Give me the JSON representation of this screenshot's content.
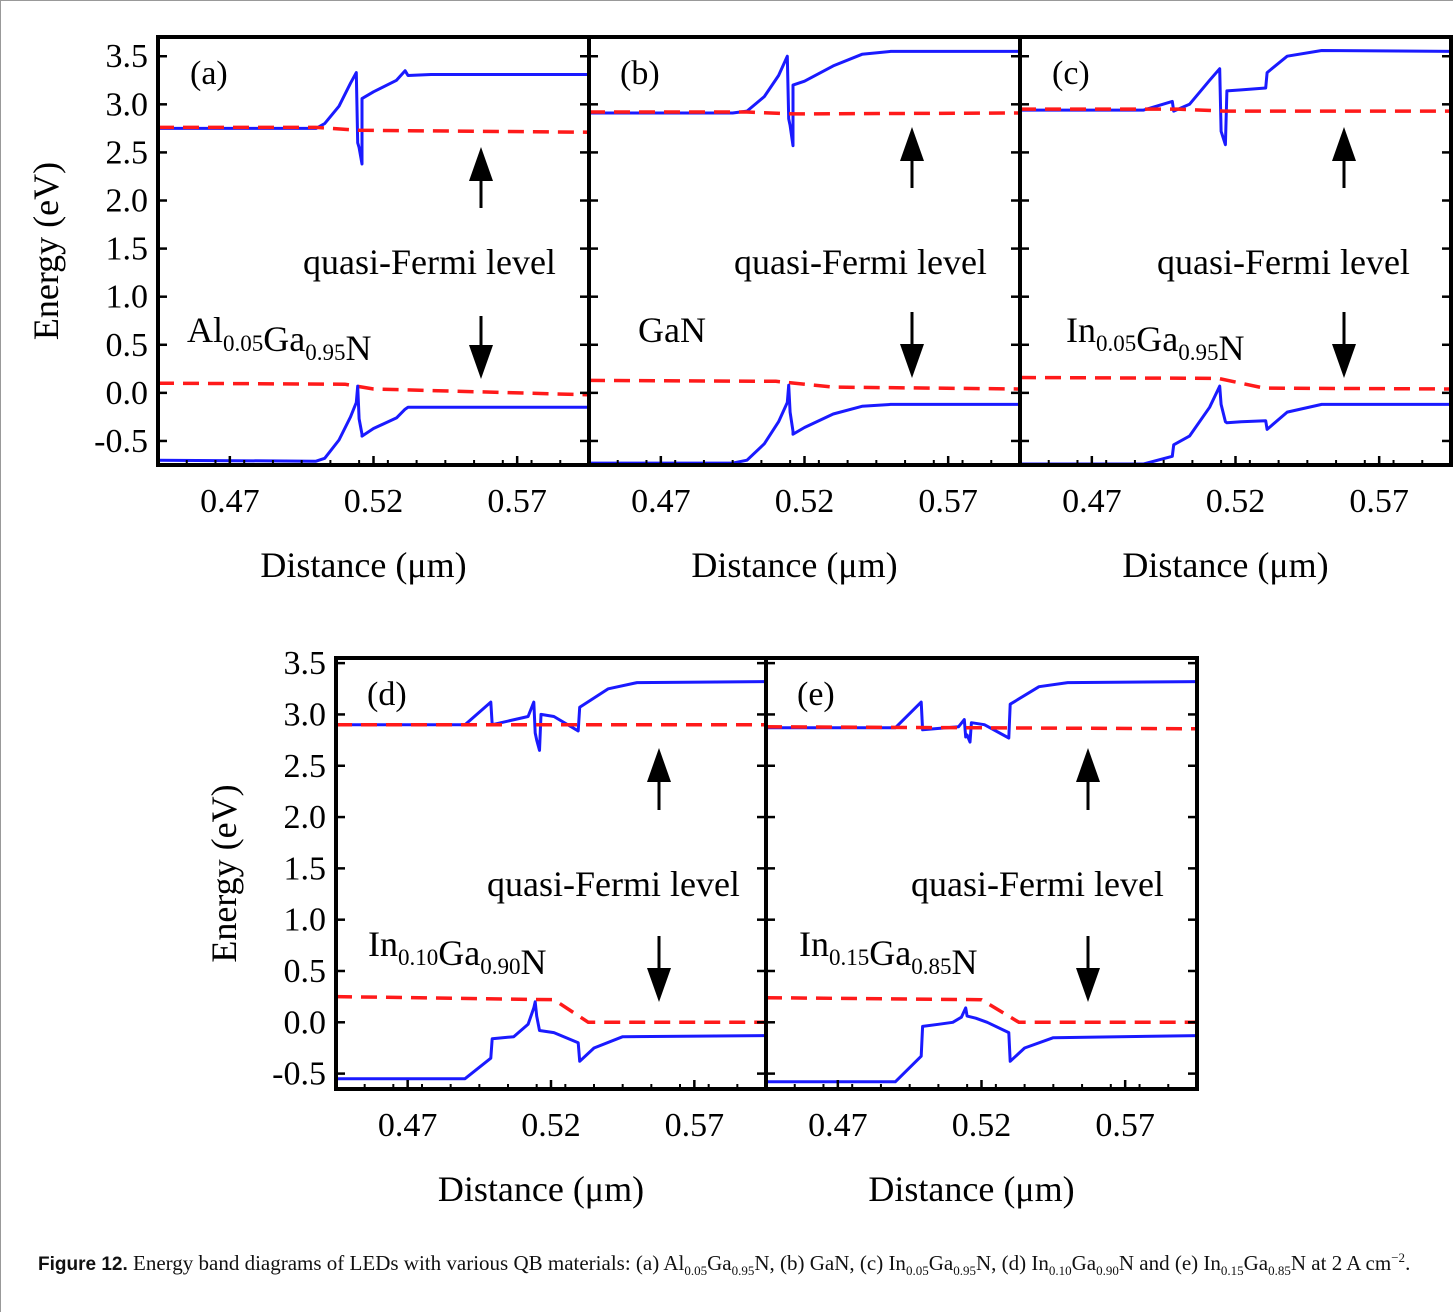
{
  "chart_data": [
    {
      "type": "line",
      "panel_label": "(a)",
      "material": {
        "base": "Al",
        "sub1": "0.05",
        "mid": "Ga",
        "sub2": "0.95",
        "end": "N"
      },
      "annotation": "quasi-Fermi level",
      "xlabel": "Distance (μm)",
      "ylabel": "Energy (eV)",
      "xlim": [
        0.445,
        0.595
      ],
      "ylim": [
        -0.75,
        3.7
      ],
      "xticks": [
        0.47,
        0.52,
        0.57
      ],
      "xtick_labels": [
        "0.47",
        "0.52",
        "0.57"
      ],
      "yticks": [
        3.5,
        3.0,
        2.5,
        2.0,
        1.5,
        1.0,
        0.5,
        0.0,
        -0.5
      ],
      "ytick_labels": [
        "3.5",
        "3.0",
        "2.5",
        "2.0",
        "1.5",
        "1.0",
        "0.5",
        "0.0",
        "-0.5"
      ],
      "series": [
        {
          "role": "conduction-band",
          "style": "solid",
          "color": "#1a1aff",
          "x": [
            0.445,
            0.5,
            0.503,
            0.508,
            0.512,
            0.514,
            0.5145,
            0.515,
            0.516,
            0.516,
            0.52,
            0.528,
            0.531,
            0.532,
            0.54,
            0.595
          ],
          "y": [
            2.75,
            2.75,
            2.8,
            2.98,
            3.22,
            3.33,
            2.6,
            2.55,
            2.38,
            3.06,
            3.13,
            3.25,
            3.35,
            3.3,
            3.31,
            3.31
          ]
        },
        {
          "role": "quasi-fermi-electron",
          "style": "dashed",
          "color": "#ff1a1a",
          "x": [
            0.445,
            0.5,
            0.515,
            0.595
          ],
          "y": [
            2.76,
            2.76,
            2.73,
            2.71
          ]
        },
        {
          "role": "quasi-fermi-hole",
          "style": "dashed",
          "color": "#ff1a1a",
          "x": [
            0.445,
            0.51,
            0.52,
            0.595
          ],
          "y": [
            0.1,
            0.09,
            0.04,
            -0.02
          ]
        },
        {
          "role": "valence-band",
          "style": "solid",
          "color": "#1a1aff",
          "x": [
            0.445,
            0.5,
            0.503,
            0.508,
            0.512,
            0.514,
            0.5145,
            0.515,
            0.516,
            0.516,
            0.52,
            0.528,
            0.531,
            0.532,
            0.54,
            0.595
          ],
          "y": [
            -0.7,
            -0.71,
            -0.68,
            -0.49,
            -0.25,
            -0.1,
            0.07,
            -0.27,
            -0.43,
            -0.45,
            -0.37,
            -0.26,
            -0.17,
            -0.15,
            -0.15,
            -0.15
          ]
        }
      ]
    },
    {
      "type": "line",
      "panel_label": "(b)",
      "material": {
        "base": "GaN",
        "sub1": "",
        "mid": "",
        "sub2": "",
        "end": ""
      },
      "annotation": "quasi-Fermi level",
      "xlabel": "Distance (μm)",
      "ylabel": "",
      "xlim": [
        0.445,
        0.595
      ],
      "ylim": [
        -0.75,
        3.7
      ],
      "xticks": [
        0.47,
        0.52,
        0.57
      ],
      "xtick_labels": [
        "0.47",
        "0.52",
        "0.57"
      ],
      "yticks": [
        3.5,
        3.0,
        2.5,
        2.0,
        1.5,
        1.0,
        0.5,
        0.0,
        -0.5
      ],
      "ytick_labels": [],
      "series": [
        {
          "role": "conduction-band",
          "style": "solid",
          "color": "#1a1aff",
          "x": [
            0.445,
            0.495,
            0.5,
            0.506,
            0.511,
            0.514,
            0.5145,
            0.515,
            0.516,
            0.516,
            0.52,
            0.53,
            0.54,
            0.55,
            0.595
          ],
          "y": [
            2.91,
            2.91,
            2.93,
            3.08,
            3.3,
            3.5,
            2.85,
            2.78,
            2.57,
            3.2,
            3.24,
            3.4,
            3.52,
            3.55,
            3.55
          ]
        },
        {
          "role": "quasi-fermi-electron",
          "style": "dashed",
          "color": "#ff1a1a",
          "x": [
            0.445,
            0.5,
            0.516,
            0.595
          ],
          "y": [
            2.92,
            2.92,
            2.9,
            2.91
          ]
        },
        {
          "role": "quasi-fermi-hole",
          "style": "dashed",
          "color": "#ff1a1a",
          "x": [
            0.445,
            0.51,
            0.53,
            0.595
          ],
          "y": [
            0.13,
            0.12,
            0.06,
            0.04
          ]
        },
        {
          "role": "valence-band",
          "style": "solid",
          "color": "#1a1aff",
          "x": [
            0.445,
            0.495,
            0.5,
            0.506,
            0.511,
            0.514,
            0.5145,
            0.515,
            0.516,
            0.516,
            0.52,
            0.53,
            0.54,
            0.55,
            0.595
          ],
          "y": [
            -0.73,
            -0.73,
            -0.7,
            -0.53,
            -0.3,
            -0.1,
            0.08,
            -0.2,
            -0.4,
            -0.43,
            -0.36,
            -0.22,
            -0.14,
            -0.12,
            -0.12
          ]
        }
      ]
    },
    {
      "type": "line",
      "panel_label": "(c)",
      "material": {
        "base": "In",
        "sub1": "0.05",
        "mid": "Ga",
        "sub2": "0.95",
        "end": "N"
      },
      "annotation": "quasi-Fermi level",
      "xlabel": "Distance (μm)",
      "ylabel": "",
      "xlim": [
        0.445,
        0.595
      ],
      "ylim": [
        -0.75,
        3.7
      ],
      "xticks": [
        0.47,
        0.52,
        0.57
      ],
      "xtick_labels": [
        "0.47",
        "0.52",
        "0.57"
      ],
      "yticks": [
        3.5,
        3.0,
        2.5,
        2.0,
        1.5,
        1.0,
        0.5,
        0.0,
        -0.5
      ],
      "ytick_labels": [],
      "series": [
        {
          "role": "conduction-band",
          "style": "solid",
          "color": "#1a1aff",
          "x": [
            0.445,
            0.488,
            0.498,
            0.4985,
            0.504,
            0.511,
            0.5145,
            0.515,
            0.5165,
            0.517,
            0.522,
            0.5305,
            0.531,
            0.538,
            0.55,
            0.595
          ],
          "y": [
            2.94,
            2.94,
            3.03,
            2.93,
            3.0,
            3.25,
            3.37,
            2.72,
            2.58,
            3.14,
            3.15,
            3.17,
            3.33,
            3.5,
            3.56,
            3.55
          ]
        },
        {
          "role": "quasi-fermi-electron",
          "style": "dashed",
          "color": "#ff1a1a",
          "x": [
            0.445,
            0.5,
            0.516,
            0.595
          ],
          "y": [
            2.95,
            2.95,
            2.93,
            2.93
          ]
        },
        {
          "role": "quasi-fermi-hole",
          "style": "dashed",
          "color": "#ff1a1a",
          "x": [
            0.445,
            0.514,
            0.53,
            0.595
          ],
          "y": [
            0.16,
            0.15,
            0.05,
            0.04
          ]
        },
        {
          "role": "valence-band",
          "style": "solid",
          "color": "#1a1aff",
          "x": [
            0.445,
            0.488,
            0.498,
            0.4985,
            0.504,
            0.511,
            0.5145,
            0.515,
            0.5165,
            0.517,
            0.522,
            0.5305,
            0.531,
            0.538,
            0.55,
            0.595
          ],
          "y": [
            -0.74,
            -0.74,
            -0.66,
            -0.54,
            -0.45,
            -0.15,
            0.07,
            -0.12,
            -0.3,
            -0.31,
            -0.3,
            -0.29,
            -0.38,
            -0.2,
            -0.12,
            -0.12
          ]
        }
      ]
    },
    {
      "type": "line",
      "panel_label": "(d)",
      "material": {
        "base": "In",
        "sub1": "0.10",
        "mid": "Ga",
        "sub2": "0.90",
        "end": "N"
      },
      "annotation": "quasi-Fermi level",
      "xlabel": "Distance (μm)",
      "ylabel": "Energy (eV)",
      "xlim": [
        0.445,
        0.595
      ],
      "ylim": [
        -0.65,
        3.55
      ],
      "xticks": [
        0.47,
        0.52,
        0.57
      ],
      "xtick_labels": [
        "0.47",
        "0.52",
        "0.57"
      ],
      "yticks": [
        3.5,
        3.0,
        2.5,
        2.0,
        1.5,
        1.0,
        0.5,
        0.0,
        -0.5
      ],
      "ytick_labels": [
        "3.5",
        "3.0",
        "2.5",
        "2.0",
        "1.5",
        "1.0",
        "0.5",
        "0.0",
        "-0.5"
      ],
      "series": [
        {
          "role": "conduction-band",
          "style": "solid",
          "color": "#1a1aff",
          "x": [
            0.445,
            0.49,
            0.499,
            0.4995,
            0.512,
            0.514,
            0.5145,
            0.515,
            0.516,
            0.5165,
            0.521,
            0.5295,
            0.53,
            0.54,
            0.55,
            0.595
          ],
          "y": [
            2.9,
            2.9,
            3.12,
            2.9,
            2.98,
            3.12,
            2.82,
            2.75,
            2.65,
            3.0,
            2.98,
            2.84,
            3.07,
            3.25,
            3.31,
            3.32
          ]
        },
        {
          "role": "quasi-fermi-electron",
          "style": "dashed",
          "color": "#ff1a1a",
          "x": [
            0.445,
            0.595
          ],
          "y": [
            2.9,
            2.9
          ]
        },
        {
          "role": "quasi-fermi-hole",
          "style": "dashed",
          "color": "#ff1a1a",
          "x": [
            0.445,
            0.521,
            0.533,
            0.595
          ],
          "y": [
            0.25,
            0.22,
            0.0,
            0.0
          ]
        },
        {
          "role": "valence-band",
          "style": "solid",
          "color": "#1a1aff",
          "x": [
            0.445,
            0.49,
            0.499,
            0.4995,
            0.507,
            0.512,
            0.514,
            0.5145,
            0.515,
            0.516,
            0.521,
            0.5295,
            0.53,
            0.535,
            0.545,
            0.595
          ],
          "y": [
            -0.55,
            -0.55,
            -0.35,
            -0.16,
            -0.14,
            -0.02,
            0.14,
            0.2,
            0.06,
            -0.08,
            -0.1,
            -0.2,
            -0.38,
            -0.25,
            -0.14,
            -0.13
          ]
        }
      ]
    },
    {
      "type": "line",
      "panel_label": "(e)",
      "material": {
        "base": "In",
        "sub1": "0.15",
        "mid": "Ga",
        "sub2": "0.85",
        "end": "N"
      },
      "annotation": "quasi-Fermi level",
      "xlabel": "Distance (μm)",
      "ylabel": "",
      "xlim": [
        0.445,
        0.595
      ],
      "ylim": [
        -0.65,
        3.55
      ],
      "xticks": [
        0.47,
        0.52,
        0.57
      ],
      "xtick_labels": [
        "0.47",
        "0.52",
        "0.57"
      ],
      "yticks": [
        3.5,
        3.0,
        2.5,
        2.0,
        1.5,
        1.0,
        0.5,
        0.0,
        -0.5
      ],
      "ytick_labels": [],
      "series": [
        {
          "role": "conduction-band",
          "style": "solid",
          "color": "#1a1aff",
          "x": [
            0.445,
            0.49,
            0.499,
            0.4995,
            0.512,
            0.514,
            0.5145,
            0.515,
            0.516,
            0.5165,
            0.521,
            0.5295,
            0.53,
            0.54,
            0.55,
            0.595
          ],
          "y": [
            2.87,
            2.87,
            3.12,
            2.85,
            2.88,
            2.95,
            2.78,
            2.8,
            2.73,
            2.92,
            2.9,
            2.77,
            3.1,
            3.27,
            3.31,
            3.32
          ]
        },
        {
          "role": "quasi-fermi-electron",
          "style": "dashed",
          "color": "#ff1a1a",
          "x": [
            0.445,
            0.595
          ],
          "y": [
            2.88,
            2.86
          ]
        },
        {
          "role": "quasi-fermi-hole",
          "style": "dashed",
          "color": "#ff1a1a",
          "x": [
            0.445,
            0.52,
            0.533,
            0.595
          ],
          "y": [
            0.24,
            0.22,
            0.0,
            0.0
          ]
        },
        {
          "role": "valence-band",
          "style": "solid",
          "color": "#1a1aff",
          "x": [
            0.445,
            0.49,
            0.499,
            0.4995,
            0.505,
            0.51,
            0.513,
            0.5145,
            0.515,
            0.518,
            0.522,
            0.5295,
            0.53,
            0.535,
            0.545,
            0.595
          ],
          "y": [
            -0.58,
            -0.58,
            -0.33,
            -0.04,
            -0.02,
            0.0,
            0.05,
            0.14,
            0.06,
            0.04,
            0.0,
            -0.1,
            -0.38,
            -0.25,
            -0.15,
            -0.13
          ]
        }
      ]
    }
  ],
  "caption": {
    "label": "Figure 12.",
    "text_parts": [
      " Energy band diagrams of LEDs with various QB materials: (a) Al",
      "0.05",
      "Ga",
      "0.95",
      "N, (b) GaN, (c) In",
      "0.05",
      "Ga",
      "0.95",
      "N, (d) In",
      "0.10",
      "Ga",
      "0.90",
      "N and (e) In",
      "0.15",
      "Ga",
      "0.85",
      "N at 2 A cm",
      "−2",
      "."
    ]
  },
  "colors": {
    "band": "#1a1aff",
    "fermi": "#ff1a1a",
    "axis": "#000000"
  }
}
